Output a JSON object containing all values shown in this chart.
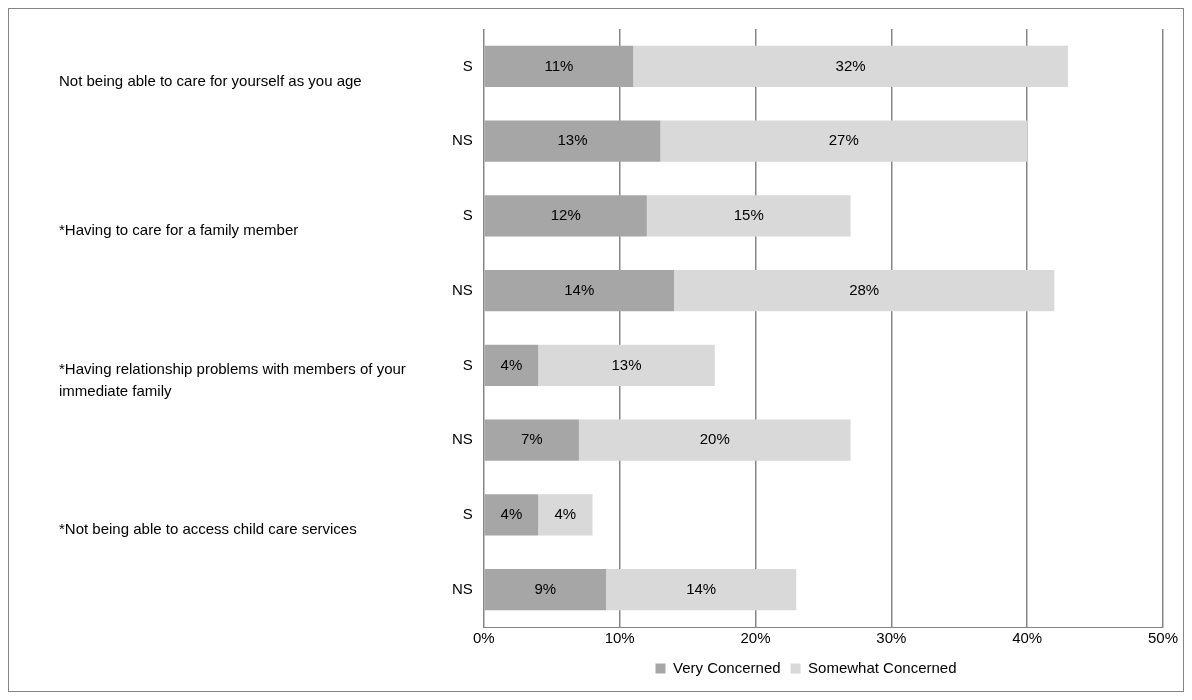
{
  "chart_data": {
    "type": "bar",
    "orientation": "horizontal",
    "stacked": true,
    "categories": [
      "S",
      "NS",
      "S",
      "NS",
      "S",
      "NS",
      "S",
      "NS"
    ],
    "series": [
      {
        "name": "Very Concerned",
        "color": "#a6a6a6",
        "values": [
          11,
          13,
          12,
          14,
          4,
          7,
          4,
          9
        ],
        "value_labels": [
          "11%",
          "13%",
          "12%",
          "14%",
          "4%",
          "7%",
          "4%",
          "9%"
        ]
      },
      {
        "name": "Somewhat Concerned",
        "color": "#d9d9d9",
        "values": [
          32,
          27,
          15,
          28,
          13,
          20,
          4,
          14
        ],
        "value_labels": [
          "32%",
          "27%",
          "15%",
          "28%",
          "13%",
          "20%",
          "4%",
          "14%"
        ]
      }
    ],
    "xlim": [
      0,
      50
    ],
    "xticks": [
      {
        "value": 0,
        "label": "0%"
      },
      {
        "value": 10,
        "label": "10%"
      },
      {
        "value": 20,
        "label": "20%"
      },
      {
        "value": 30,
        "label": "30%"
      },
      {
        "value": 40,
        "label": "40%"
      },
      {
        "value": 50,
        "label": "50%"
      }
    ],
    "grid": "x",
    "legend": "bottom",
    "annotations": [
      "Not being able to care for yourself as you age",
      "*Having to care for a family member",
      "*Having relationship problems with members of your immediate family",
      "*Not being able to access child care services"
    ]
  }
}
